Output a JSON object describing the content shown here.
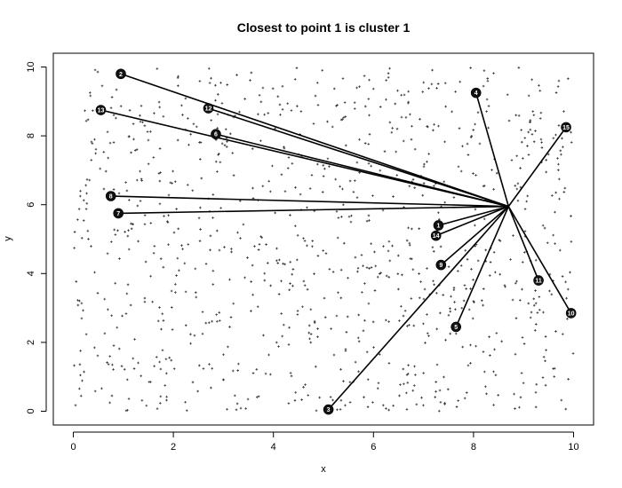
{
  "chart_data": {
    "type": "scatter",
    "title": "Closest to point 1 is cluster 1",
    "xlabel": "x",
    "ylabel": "y",
    "xlim": [
      -0.4,
      10.4
    ],
    "ylim": [
      -0.4,
      10.4
    ],
    "x_ticks": [
      "0",
      "2",
      "4",
      "6",
      "8",
      "10"
    ],
    "y_ticks": [
      "0",
      "2",
      "4",
      "6",
      "8",
      "10"
    ],
    "grid": false,
    "legend": "none",
    "background_point_count": 1000,
    "background_point_color": "#333333",
    "line_color": "#000000",
    "hub": {
      "x": 8.7,
      "y": 5.95
    },
    "points": [
      {
        "label": "2",
        "x": 0.95,
        "y": 9.8
      },
      {
        "label": "3",
        "x": 5.1,
        "y": 0.05
      },
      {
        "label": "4",
        "x": 8.05,
        "y": 9.25
      },
      {
        "label": "5",
        "x": 7.65,
        "y": 2.45
      },
      {
        "label": "6",
        "x": 2.85,
        "y": 8.05
      },
      {
        "label": "7",
        "x": 0.9,
        "y": 5.75
      },
      {
        "label": "8",
        "x": 0.75,
        "y": 6.25
      },
      {
        "label": "9",
        "x": 7.35,
        "y": 4.25
      },
      {
        "label": "10",
        "x": 9.95,
        "y": 2.85
      },
      {
        "label": "11",
        "x": 9.3,
        "y": 3.8
      },
      {
        "label": "12",
        "x": 2.7,
        "y": 8.8
      },
      {
        "label": "13",
        "x": 0.55,
        "y": 8.75
      },
      {
        "label": "14",
        "x": 7.25,
        "y": 5.1
      },
      {
        "label": "15",
        "x": 9.85,
        "y": 8.25
      },
      {
        "label": "1",
        "x": 7.3,
        "y": 5.4
      }
    ]
  }
}
